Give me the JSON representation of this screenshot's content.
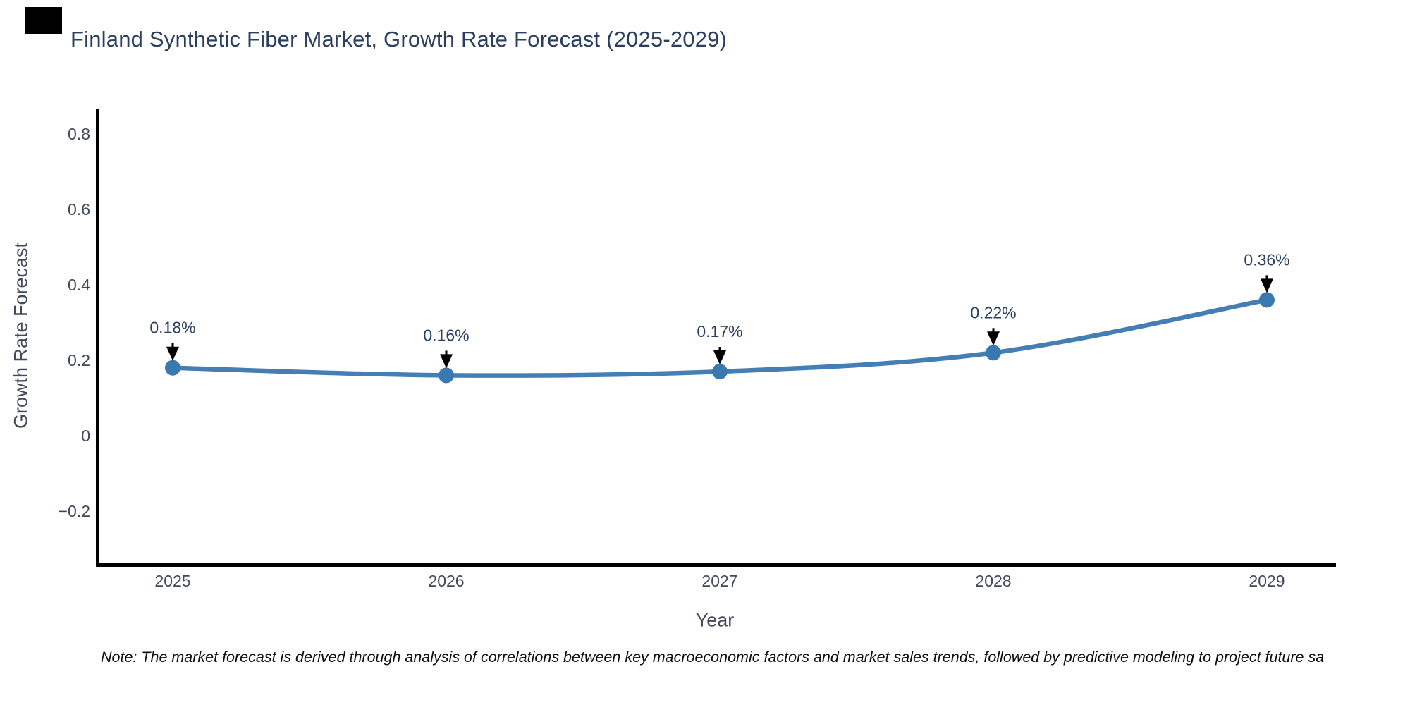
{
  "chart_data": {
    "type": "line",
    "title": "Finland Synthetic Fiber Market, Growth Rate Forecast (2025-2029)",
    "xlabel": "Year",
    "ylabel": "Growth Rate Forecast",
    "categories": [
      "2025",
      "2026",
      "2027",
      "2028",
      "2029"
    ],
    "series": [
      {
        "name": "Growth Rate Forecast",
        "values": [
          0.18,
          0.16,
          0.17,
          0.22,
          0.36
        ]
      }
    ],
    "point_labels": [
      "0.18%",
      "0.16%",
      "0.17%",
      "0.22%",
      "0.36%"
    ],
    "yticks": {
      "labels": [
        "0.8",
        "0.6",
        "0.4",
        "0.2",
        "0",
        "−0.2"
      ],
      "values": [
        0.8,
        0.6,
        0.4,
        0.2,
        0,
        -0.2
      ]
    },
    "ylim": [
      -0.34,
      0.87
    ],
    "grid": false,
    "legend_position": "none",
    "line_color": "#447eb4",
    "marker_color": "#3a79b0",
    "arrow_color": "#000000",
    "axis_color": "#000000"
  },
  "footnote": {
    "text": "Note: The market forecast is derived through analysis of correlations between key macroeconomic factors and market sales trends, followed by predictive modeling to project future sa"
  },
  "colors": {
    "title_text": "#2a3f5f",
    "axis_text": "#42495b",
    "background": "#ffffff"
  }
}
